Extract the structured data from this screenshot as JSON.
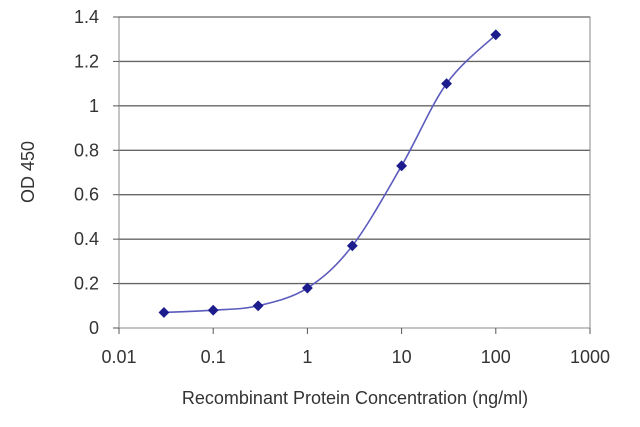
{
  "chart_data": {
    "type": "line",
    "xscale": "log",
    "xlabel": "Recombinant Protein Concentration (ng/ml)",
    "ylabel": "OD 450",
    "xlim": [
      0.01,
      1000
    ],
    "ylim": [
      0,
      1.4
    ],
    "x_ticks": [
      0.01,
      0.1,
      1,
      10,
      100,
      1000
    ],
    "x_tick_labels": [
      "0.01",
      "0.1",
      "1",
      "10",
      "100",
      "1000"
    ],
    "y_ticks": [
      0,
      0.2,
      0.4,
      0.6,
      0.8,
      1,
      1.2,
      1.4
    ],
    "y_tick_labels": [
      "0",
      "0.2",
      "0.4",
      "0.6",
      "0.8",
      "1",
      "1.2",
      "1.4"
    ],
    "grid": "horizontal",
    "legend": "none",
    "series": [
      {
        "x": [
          0.03,
          0.1,
          0.3,
          1,
          3,
          10,
          30,
          100
        ],
        "y": [
          0.07,
          0.08,
          0.1,
          0.18,
          0.37,
          0.73,
          1.1,
          1.32
        ],
        "color": "#1c1c8c",
        "line_color": "#5b5bbd",
        "marker": "diamond"
      }
    ],
    "colors": {
      "plot_background": "#ffffff",
      "gridline": "#666666",
      "frame": "#888888"
    }
  }
}
